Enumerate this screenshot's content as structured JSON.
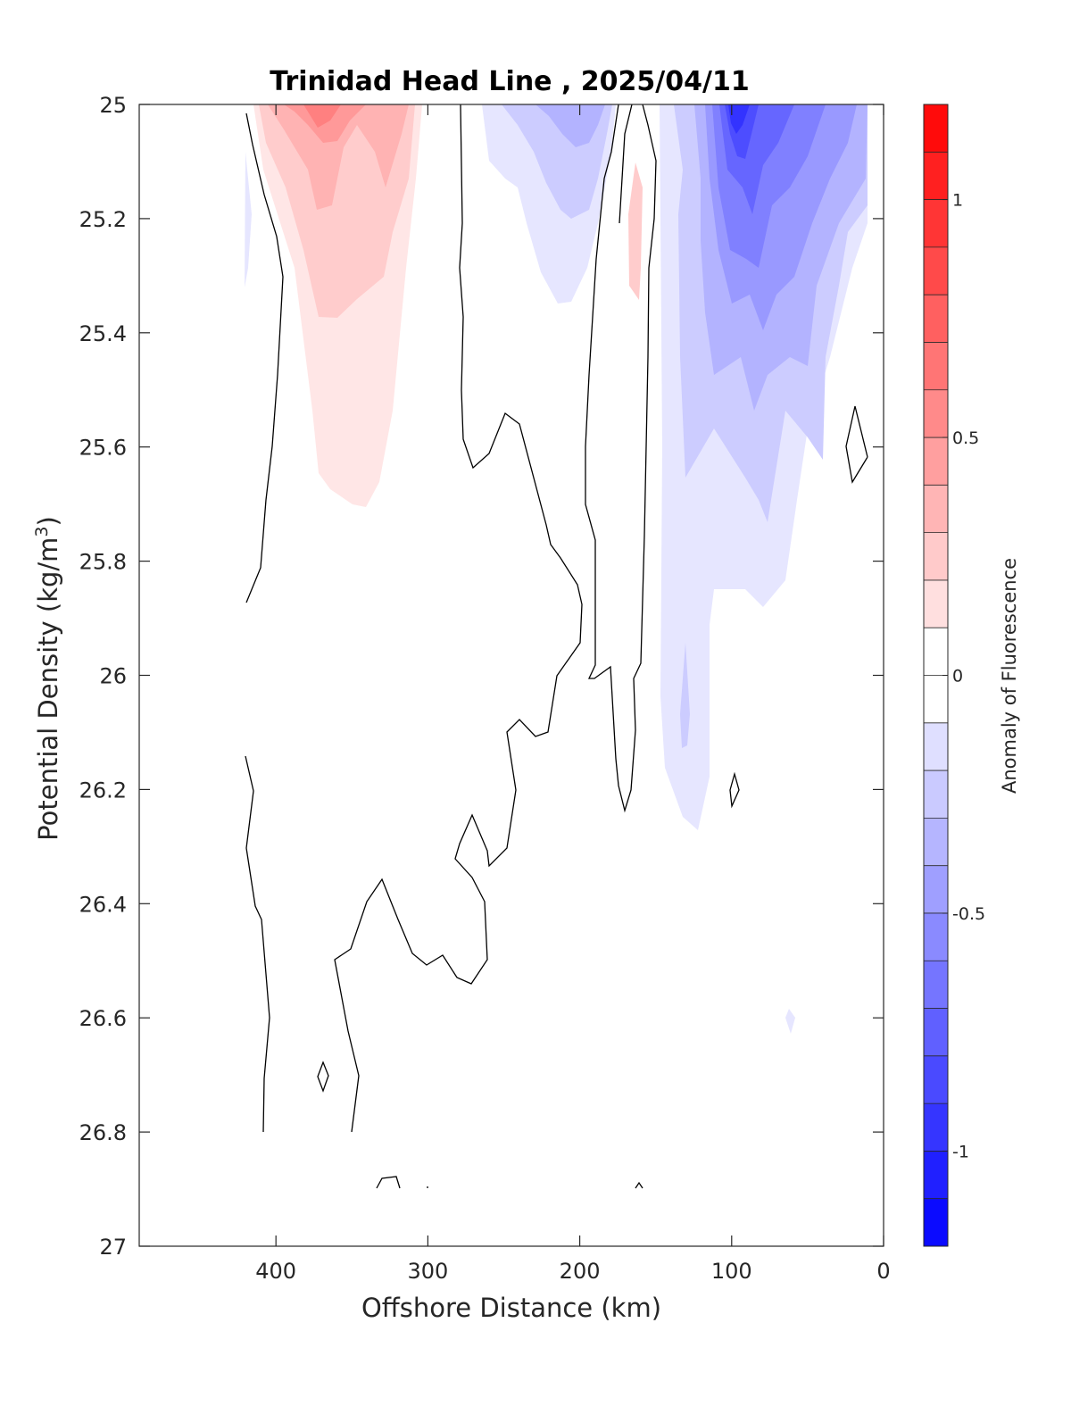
{
  "chart_data": {
    "type": "contour",
    "title": "Trinidad Head Line , 2025/04/11",
    "xlabel": "Offshore Distance (km)",
    "ylabel": "Potential Density (kg/m",
    "ylabel_superscript": "3",
    "ylabel_suffix": ")",
    "colorbar_label": "Anomaly of Fluorescence",
    "xlim": [
      490,
      0
    ],
    "x_reversed": true,
    "ylim": [
      25,
      27
    ],
    "y_reversed": true,
    "x_ticks": [
      400,
      300,
      200,
      100,
      0
    ],
    "y_ticks": [
      25,
      25.2,
      25.4,
      25.6,
      25.8,
      26,
      26.2,
      26.4,
      26.6,
      26.8,
      27
    ],
    "y_tick_labels": [
      "25",
      "25.2",
      "25.4",
      "25.6",
      "25.8",
      "26",
      "26.2",
      "26.4",
      "26.6",
      "26.8",
      "27"
    ],
    "colorbar": {
      "limits": [
        -1.2,
        1.2
      ],
      "step": 0.1,
      "ticks": [
        1,
        0.5,
        0,
        -0.5,
        -1
      ],
      "tick_labels": [
        "1",
        "0.5",
        "0",
        "-0.5",
        "-1"
      ],
      "colormap": "blue-white-red"
    },
    "grid": false,
    "features": [
      {
        "kind": "positive",
        "center_km": 370,
        "top": 25.0,
        "bottom": 25.7,
        "peak": 0.5
      },
      {
        "kind": "negative",
        "center_km": 100,
        "top": 25.0,
        "bottom": 26.25,
        "peak": -1.1
      },
      {
        "kind": "negative",
        "center_km": 210,
        "top": 25.0,
        "bottom": 25.35,
        "peak": -0.4
      },
      {
        "kind": "positive",
        "center_km": 163,
        "top": 25.15,
        "bottom": 25.34,
        "peak": 0.2
      }
    ],
    "zero_contour": true
  }
}
